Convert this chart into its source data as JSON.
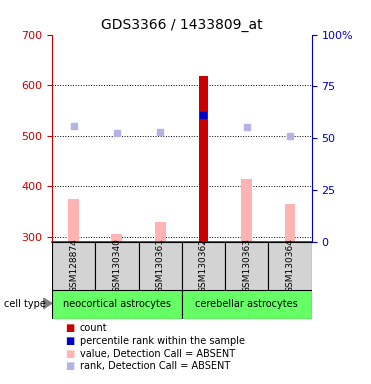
{
  "title": "GDS3366 / 1433809_at",
  "samples": [
    "GSM128874",
    "GSM130340",
    "GSM130361",
    "GSM130362",
    "GSM130363",
    "GSM130364"
  ],
  "ylim_left": [
    290,
    700
  ],
  "ylim_right": [
    0,
    100
  ],
  "yticks_left": [
    300,
    400,
    500,
    600,
    700
  ],
  "yticks_right": [
    0,
    25,
    50,
    75,
    100
  ],
  "values_absent": [
    375,
    305,
    330,
    0,
    415,
    365
  ],
  "ranks_absent": [
    520,
    505,
    507,
    0,
    517,
    500
  ],
  "value_count": [
    0,
    0,
    0,
    618,
    0,
    0
  ],
  "percentile_rank": [
    0,
    0,
    0,
    540,
    0,
    0
  ],
  "bar_width": 0.4,
  "count_color": "#cc0000",
  "percentile_color": "#0000cc",
  "value_absent_color": "#ffb3b3",
  "rank_absent_color": "#b3b3e6",
  "bg_color": "#ffffff",
  "left_axis_color": "#cc0000",
  "right_axis_color": "#0000cc",
  "sample_box_color": "#d3d3d3",
  "cell_type_box_color": "#66ff66"
}
